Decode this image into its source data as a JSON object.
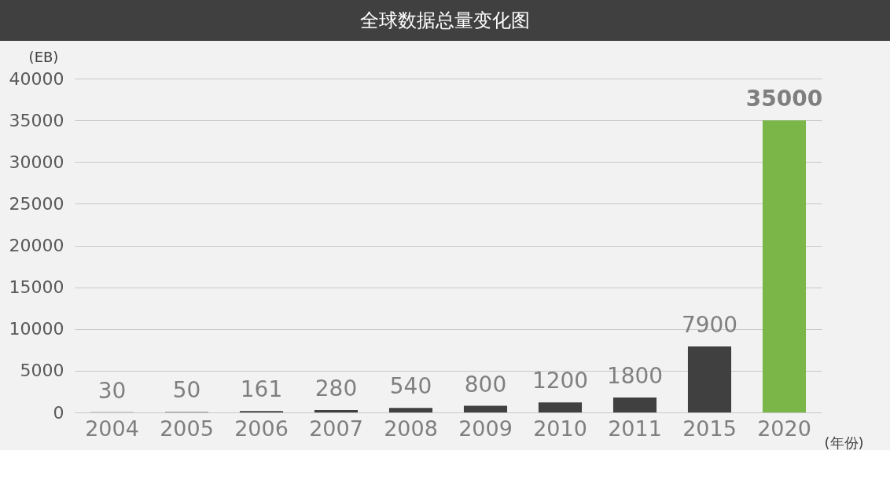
{
  "chart_data": {
    "type": "bar",
    "title": "全球数据总量变化图",
    "xlabel": "(年份)",
    "ylabel": "(EB)",
    "categories": [
      "2004",
      "2005",
      "2006",
      "2007",
      "2008",
      "2009",
      "2010",
      "2011",
      "2015",
      "2020"
    ],
    "values": [
      30,
      50,
      161,
      280,
      540,
      800,
      1200,
      1800,
      7900,
      35000
    ],
    "colors": [
      "#404040",
      "#404040",
      "#404040",
      "#404040",
      "#404040",
      "#404040",
      "#404040",
      "#404040",
      "#404040",
      "#7ab648"
    ],
    "ylim": [
      0,
      40000
    ],
    "yticks": [
      0,
      5000,
      10000,
      15000,
      20000,
      25000,
      30000,
      35000,
      40000
    ],
    "grid": "y",
    "data_labels": true
  }
}
